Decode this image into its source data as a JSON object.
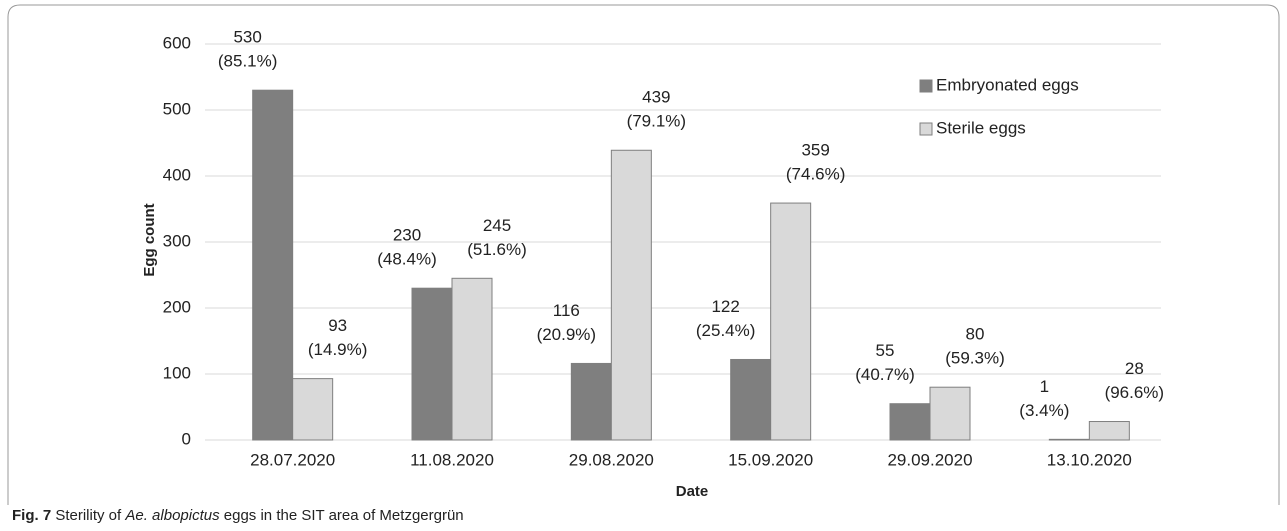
{
  "chart_data": {
    "type": "bar",
    "categories": [
      "28.07.2020",
      "11.08.2020",
      "29.08.2020",
      "15.09.2020",
      "29.09.2020",
      "13.10.2020"
    ],
    "series": [
      {
        "name": "Embryonated eggs",
        "color": "#7f7f7f",
        "values": [
          530,
          230,
          116,
          122,
          55,
          1
        ],
        "percent_labels": [
          "(85.1%)",
          "(48.4%)",
          "(20.9%)",
          "(25.4%)",
          "(40.7%)",
          "(3.4%)"
        ]
      },
      {
        "name": "Sterile eggs",
        "color": "#d9d9d9",
        "values": [
          93,
          245,
          439,
          359,
          80,
          28
        ],
        "percent_labels": [
          "(14.9%)",
          "(51.6%)",
          "(79.1%)",
          "(74.6%)",
          "(59.3%)",
          "(96.6%)"
        ]
      }
    ],
    "ylim": [
      0,
      600
    ],
    "yticks": [
      0,
      100,
      200,
      300,
      400,
      500,
      600
    ],
    "grid": true,
    "y_label": "Egg count",
    "x_label": "Date",
    "caption": {
      "label": "Fig. 7",
      "parts": [
        "Sterility of",
        "Ae. albopictus",
        "eggs in the SIT area of Metzgergrün"
      ]
    }
  }
}
